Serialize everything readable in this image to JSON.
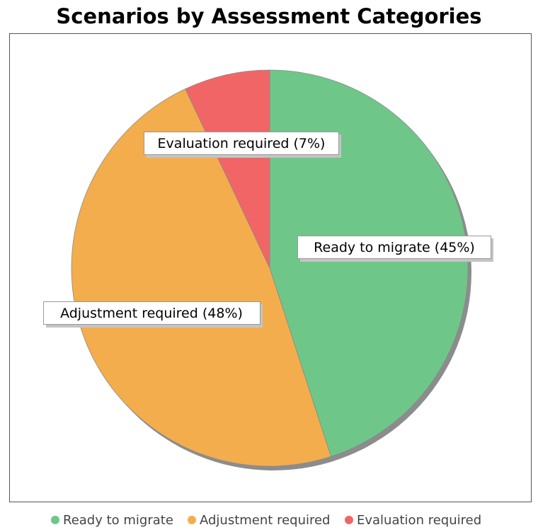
{
  "chart_data": {
    "type": "pie",
    "title": "Scenarios by Assessment Categories",
    "slices": [
      {
        "name": "Ready to migrate",
        "label": "Ready to migrate (45%)",
        "value": 45,
        "color": "#6ec789"
      },
      {
        "name": "Adjustment required",
        "label": "Adjustment required (48%)",
        "value": 48,
        "color": "#f4ad4c"
      },
      {
        "name": "Evaluation required",
        "label": "Evaluation required (7%)",
        "value": 7,
        "color": "#f26567"
      }
    ],
    "legend": {
      "position": "bottom",
      "items": [
        "Ready to migrate",
        "Adjustment required",
        "Evaluation required"
      ]
    }
  }
}
